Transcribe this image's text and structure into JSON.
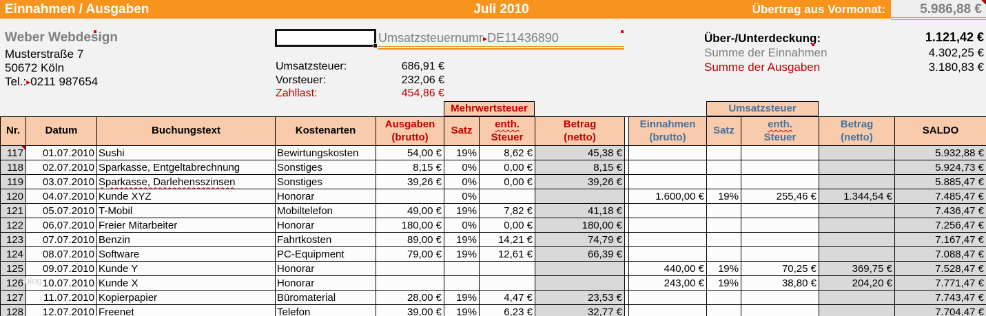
{
  "title_bar": {
    "title": "Einnahmen / Ausgaben",
    "month": "Juli 2010",
    "carryover_label": "Übertrag aus Vormonat:",
    "carryover_value": "5.986,88 €"
  },
  "company": {
    "name": "Weber Webdesign",
    "street": "Musterstraße 7",
    "city": "50672 Köln",
    "phone_label": "Tel.:",
    "phone": "0211 987654"
  },
  "vat_block": {
    "ustnr_label": "Umsatzsteuernumr",
    "ustnr_value": "DE11436890",
    "rows": [
      {
        "label": "Umsatzsteuer:",
        "value": "686,91 €"
      },
      {
        "label": "Vorsteuer:",
        "value": "232,06 €"
      },
      {
        "label": "Zahllast:",
        "value": "454,86 €"
      }
    ]
  },
  "summary": {
    "coverage_label": "Über-/Unterdeckung:",
    "coverage_value": "1.121,42 €",
    "income_label": "Summe der Einnahmen",
    "income_value": "4.302,25 €",
    "expense_label": "Summe der Ausgaben",
    "expense_value": "3.180,83 €"
  },
  "table": {
    "band_mwst": "Mehrwertsteuer",
    "band_ust": "Umsatzsteuer",
    "headers": {
      "nr": "Nr.",
      "datum": "Datum",
      "buchungstext": "Buchungstext",
      "kostenarten": "Kostenarten",
      "ausgaben1": "Ausgaben",
      "ausgaben2": "(brutto)",
      "satz_mwst": "Satz",
      "enth1_mwst": "enth.",
      "enth2_mwst": "Steuer",
      "betrag1_mwst": "Betrag",
      "betrag2_mwst": "(netto)",
      "einnahmen1": "Einnahmen",
      "einnahmen2": "(brutto)",
      "satz_ust": "Satz",
      "enth1_ust": "enth.",
      "enth2_ust": "Steuer",
      "betrag1_ust": "Betrag",
      "betrag2_ust": "(netto)",
      "saldo": "SALDO"
    },
    "rows": [
      [
        "117",
        "01.07.2010",
        "Sushi",
        "Bewirtungskosten",
        "54,00 €",
        "19%",
        "8,62 €",
        "45,38 €",
        "",
        "",
        "",
        "",
        "5.932,88 €"
      ],
      [
        "118",
        "02.07.2010",
        "Sparkasse, Entgeltabrechnung",
        "Sonstiges",
        "8,15 €",
        "0%",
        "0,00 €",
        "8,15 €",
        "",
        "",
        "",
        "",
        "5.924,73 €"
      ],
      [
        "119",
        "03.07.2010",
        "Sparkasse, Darlehensszinsen",
        "Sonstiges",
        "39,26 €",
        "0%",
        "0,00 €",
        "39,26 €",
        "",
        "",
        "",
        "",
        "5.885,47 €"
      ],
      [
        "120",
        "04.07.2010",
        "Kunde XYZ",
        "Honorar",
        "",
        "0%",
        "",
        "",
        "1.600,00 €",
        "19%",
        "255,46 €",
        "1.344,54 €",
        "7.485,47 €"
      ],
      [
        "121",
        "05.07.2010",
        "T-Mobil",
        "Mobiltelefon",
        "49,00 €",
        "19%",
        "7,82 €",
        "41,18 €",
        "",
        "",
        "",
        "",
        "7.436,47 €"
      ],
      [
        "122",
        "06.07.2010",
        "Freier Mitarbeiter",
        "Honorar",
        "180,00 €",
        "0%",
        "0,00 €",
        "180,00 €",
        "",
        "",
        "",
        "",
        "7.256,47 €"
      ],
      [
        "123",
        "07.07.2010",
        "Benzin",
        "Fahrtkosten",
        "89,00 €",
        "19%",
        "14,21 €",
        "74,79 €",
        "",
        "",
        "",
        "",
        "7.167,47 €"
      ],
      [
        "124",
        "08.07.2010",
        "Software",
        "PC-Equipment",
        "79,00 €",
        "19%",
        "12,61 €",
        "66,39 €",
        "",
        "",
        "",
        "",
        "7.088,47 €"
      ],
      [
        "125",
        "09.07.2010",
        "Kunde Y",
        "Honorar",
        "",
        "",
        "",
        "",
        "440,00 €",
        "19%",
        "70,25 €",
        "369,75 €",
        "7.528,47 €"
      ],
      [
        "126",
        "10.07.2010",
        "Kunde X",
        "Honorar",
        "",
        "",
        "",
        "",
        "243,00 €",
        "19%",
        "38,80 €",
        "204,20 €",
        "7.771,47 €"
      ],
      [
        "127",
        "11.07.2010",
        "Kopierpapier",
        "Büromaterial",
        "28,00 €",
        "19%",
        "4,47 €",
        "23,53 €",
        "",
        "",
        "",
        "",
        "7.743,47 €"
      ],
      [
        "128",
        "12.07.2010",
        "Freenet",
        "Telefon",
        "39,00 €",
        "19%",
        "6,23 €",
        "32,77 €",
        "",
        "",
        "",
        "",
        "7.704,47 €"
      ]
    ],
    "spellcheck_rows": [
      2,
      11
    ],
    "comment_rows": [
      0
    ]
  },
  "watermark": "blog",
  "colors": {
    "accent_orange": "#F7941E",
    "header_peach": "#F8CBAD",
    "expense_red": "#C00000",
    "income_blue": "#44729E",
    "gray_fill": "#D9D9D9",
    "muted_gray_text": "#808080"
  }
}
